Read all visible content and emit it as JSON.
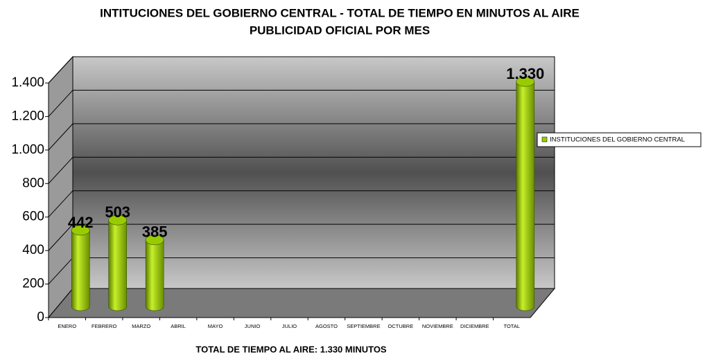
{
  "chart_data": {
    "type": "bar",
    "title": [
      "INTITUCIONES DEL GOBIERNO CENTRAL - TOTAL DE TIEMPO EN MINUTOS AL AIRE",
      "PUBLICIDAD OFICIAL POR MES"
    ],
    "xlabel": "TOTAL DE TIEMPO AL AIRE: 1.330 MINUTOS",
    "categories": [
      "ENERO",
      "FEBRERO",
      "MARZO",
      "ABRIL",
      "MAYO",
      "JUNIO",
      "JULIO",
      "AGOSTO",
      "SEPTIEMBRE",
      "OCTUBRE",
      "NOVIEMBRE",
      "DICIEMBRE",
      "TOTAL"
    ],
    "series": [
      {
        "name": "INSTITUCIONES DEL GOBIERNO CENTRAL",
        "color": "#99cc00",
        "values": [
          442,
          503,
          385,
          null,
          null,
          null,
          null,
          null,
          null,
          null,
          null,
          null,
          1330
        ],
        "value_labels": [
          "442",
          "503",
          "385",
          null,
          null,
          null,
          null,
          null,
          null,
          null,
          null,
          null,
          "1.330"
        ]
      }
    ],
    "ylim": [
      0,
      1400
    ],
    "yticks": [
      0,
      200,
      400,
      600,
      800,
      {
        "value": 1000,
        "label": "1.000"
      },
      {
        "value": 1200,
        "label": "1.200"
      },
      {
        "value": 1400,
        "label": "1.400"
      }
    ],
    "grid": true,
    "legend": "right"
  }
}
